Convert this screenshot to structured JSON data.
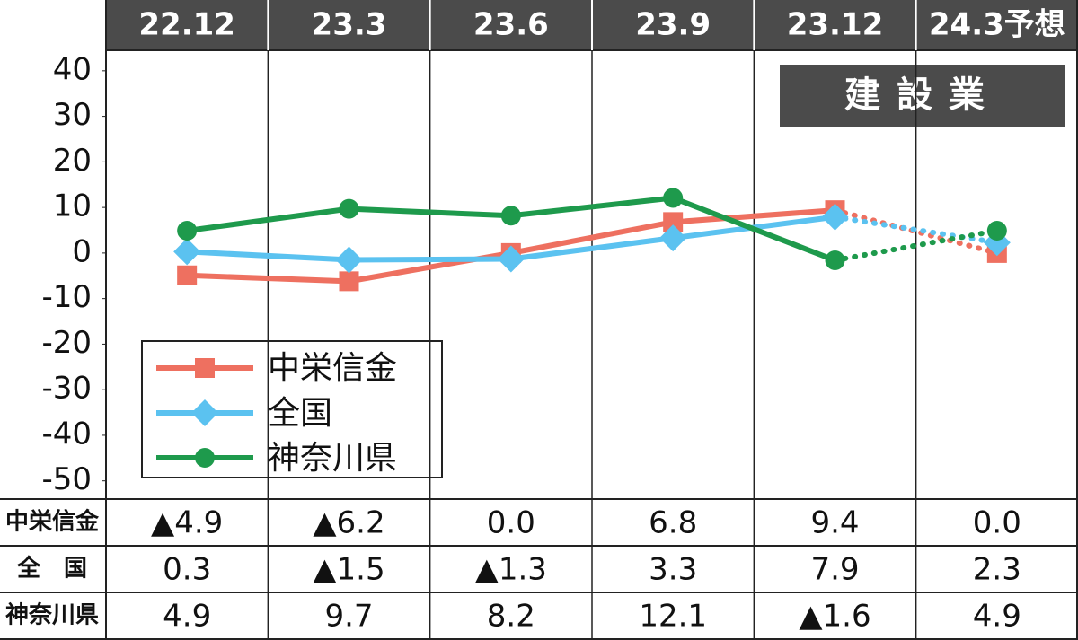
{
  "chart_data": {
    "type": "line",
    "title": "建設業",
    "categories": [
      "22.12",
      "23.3",
      "23.6",
      "23.9",
      "23.12",
      "24.3予想"
    ],
    "series": [
      {
        "name": "中栄信金",
        "row_label": "中栄信金",
        "color": "#ee7060",
        "marker": "square",
        "values": [
          -4.9,
          -6.2,
          0.0,
          6.8,
          9.4,
          0.0
        ],
        "value_labels": [
          "▲4.9",
          "▲6.2",
          "0.0",
          "6.8",
          "9.4",
          "0.0"
        ]
      },
      {
        "name": "全国",
        "row_label": "全　国",
        "color": "#5bc2f0",
        "marker": "diamond",
        "values": [
          0.3,
          -1.5,
          -1.3,
          3.3,
          7.9,
          2.3
        ],
        "value_labels": [
          "0.3",
          "▲1.5",
          "▲1.3",
          "3.3",
          "7.9",
          "2.3"
        ]
      },
      {
        "name": "神奈川県",
        "row_label": "神奈川県",
        "color": "#1e9a4c",
        "marker": "circle",
        "values": [
          4.9,
          9.7,
          8.2,
          12.1,
          -1.6,
          4.9
        ],
        "value_labels": [
          "4.9",
          "9.7",
          "8.2",
          "12.1",
          "▲1.6",
          "4.9"
        ]
      }
    ],
    "ylim": [
      -54,
      44.5
    ],
    "yticks": [
      40,
      30,
      20,
      10,
      0,
      -10,
      -20,
      -30,
      -40,
      -50
    ],
    "dotted_last_segment": true,
    "legend": "lower-left"
  }
}
